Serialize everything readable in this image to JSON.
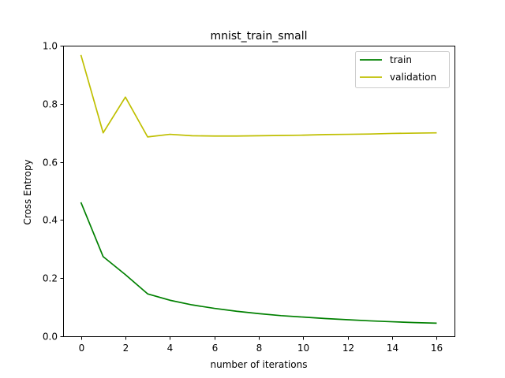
{
  "chart_data": {
    "type": "line",
    "title": "mnist_train_small",
    "xlabel": "number of iterations",
    "ylabel": "Cross Entropy",
    "xlim": [
      -0.8,
      16.8
    ],
    "ylim": [
      0.0,
      1.0
    ],
    "xticks": [
      0,
      2,
      4,
      6,
      8,
      10,
      12,
      14,
      16
    ],
    "yticks": [
      0.0,
      0.2,
      0.4,
      0.6,
      0.8,
      1.0
    ],
    "xtick_labels": [
      "0",
      "2",
      "4",
      "6",
      "8",
      "10",
      "12",
      "14",
      "16"
    ],
    "ytick_labels": [
      "0.0",
      "0.2",
      "0.4",
      "0.6",
      "0.8",
      "1.0"
    ],
    "grid": false,
    "legend_position": "top-right",
    "x": [
      0,
      1,
      2,
      3,
      4,
      5,
      6,
      7,
      8,
      9,
      10,
      11,
      12,
      13,
      14,
      15,
      16
    ],
    "series": [
      {
        "name": "train",
        "color": "#008000",
        "values": [
          0.461,
          0.274,
          0.212,
          0.146,
          0.124,
          0.108,
          0.096,
          0.086,
          0.078,
          0.071,
          0.066,
          0.061,
          0.057,
          0.053,
          0.05,
          0.047,
          0.045
        ]
      },
      {
        "name": "validation",
        "color": "#bfbf00",
        "values": [
          0.968,
          0.7,
          0.823,
          0.686,
          0.695,
          0.69,
          0.689,
          0.689,
          0.69,
          0.691,
          0.692,
          0.694,
          0.695,
          0.696,
          0.698,
          0.699,
          0.7
        ]
      }
    ]
  }
}
